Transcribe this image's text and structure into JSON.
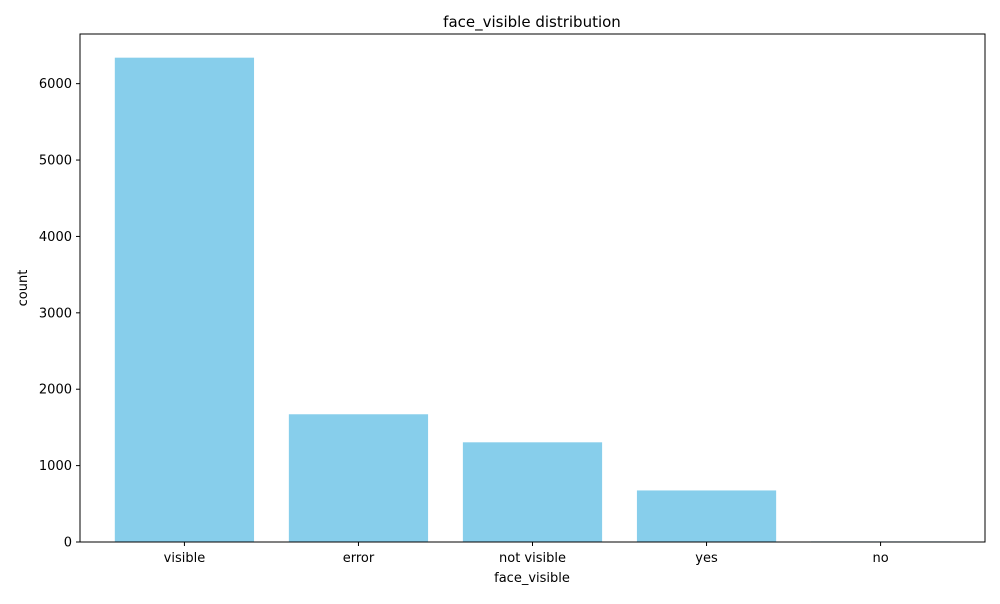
{
  "chart_data": {
    "type": "bar",
    "title": "face_visible distribution",
    "xlabel": "face_visible",
    "ylabel": "count",
    "categories": [
      "visible",
      "error",
      "not visible",
      "yes",
      "no"
    ],
    "values": [
      6340,
      1672,
      1305,
      675,
      8
    ],
    "ylim": [
      0,
      6650
    ],
    "yticks": [
      0,
      1000,
      2000,
      3000,
      4000,
      5000,
      6000
    ],
    "grid": false,
    "bar_color": "#87CEEB"
  }
}
